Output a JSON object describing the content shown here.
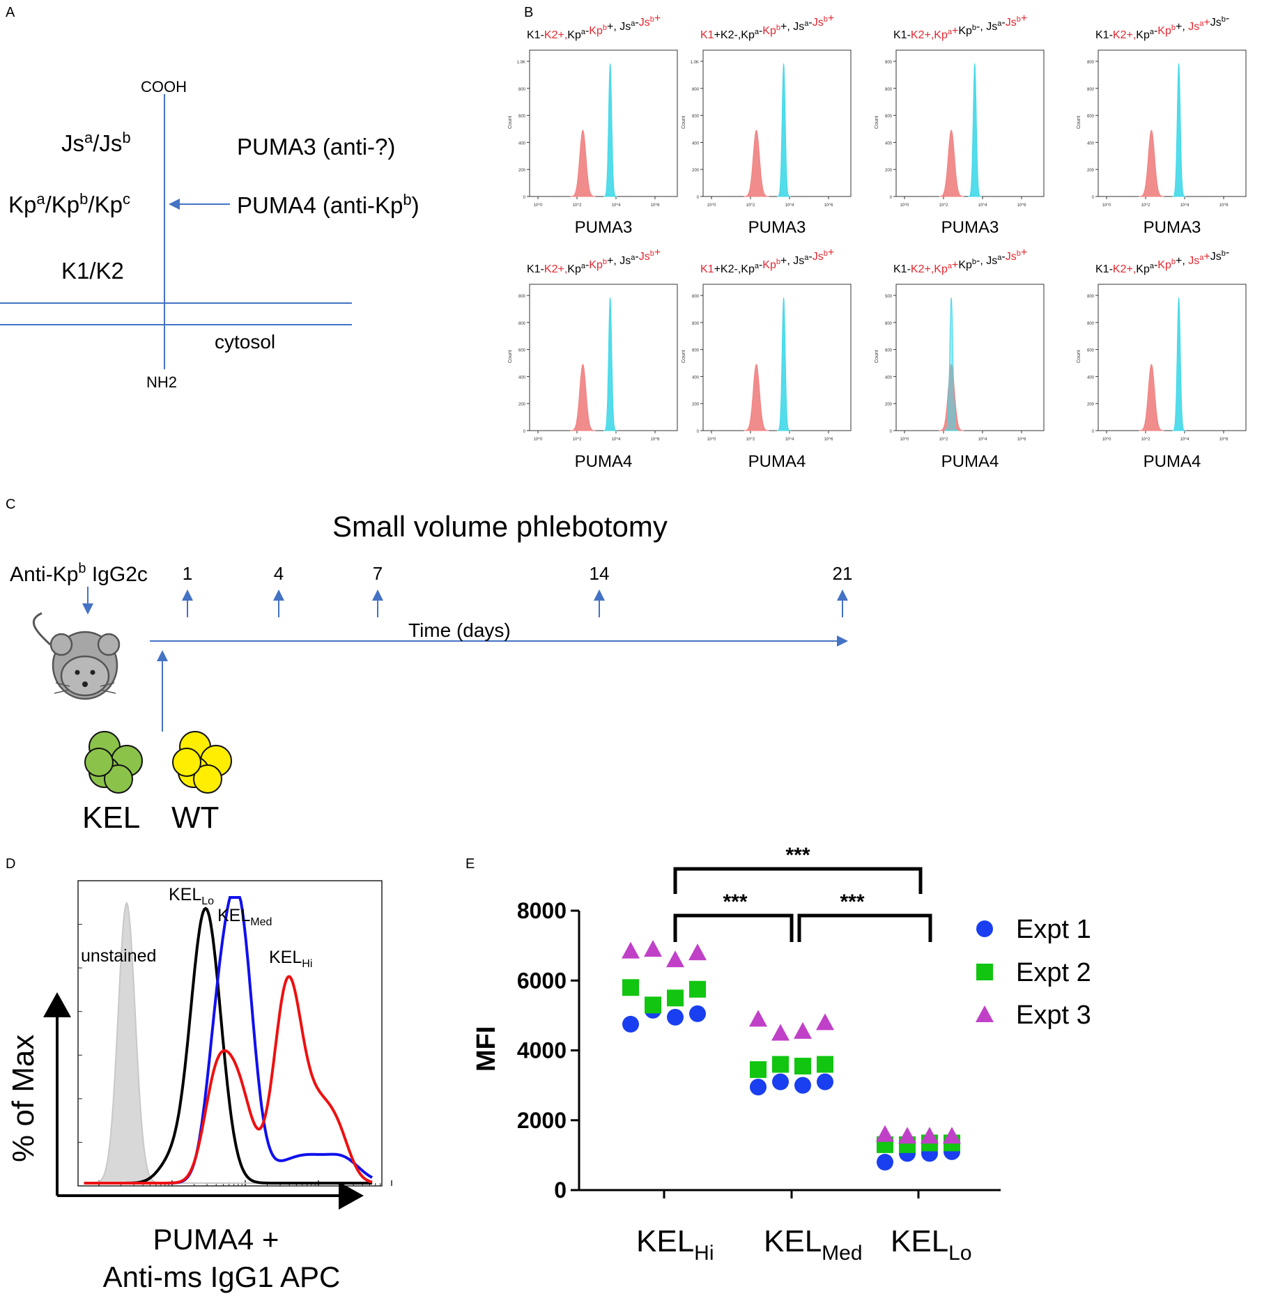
{
  "panel_labels": [
    "A",
    "B",
    "C",
    "D",
    "E"
  ],
  "colors": {
    "accent": "#4472c4",
    "red_text": "#e3262f",
    "hist_red": "#f08080",
    "hist_cyan": "#40d8e8",
    "kel_green": "#8bc34a",
    "wt_yellow": "#ffee00"
  },
  "panelA": {
    "top": "COOH",
    "bottom": "NH2",
    "cytosol": "cytosol",
    "left_labels": [
      {
        "id": "js",
        "base1": "Js",
        "sup1": "a",
        "sep": "/Js",
        "sup2": "b"
      },
      {
        "id": "kp",
        "text": "Kpa/Kpb/Kpc"
      },
      {
        "id": "k",
        "text": "K1/K2"
      }
    ],
    "js_base1": "Js",
    "js_sup1": "a",
    "js_sep": "/Js",
    "js_sup2": "b",
    "kp_base1": "Kp",
    "kp_sup1": "a",
    "kp_sep1": "/Kp",
    "kp_sup2": "b",
    "kp_sep2": "/Kp",
    "kp_sup3": "c",
    "k_label": "K1/K2",
    "puma3_label": "PUMA3 (anti-?)",
    "puma4_base": "PUMA4 (anti-Kp",
    "puma4_sup": "b",
    "puma4_close": ")"
  },
  "panelB": {
    "y_axis_label": "Count",
    "x_tick_labels": [
      "10^0",
      "10^2",
      "10^4",
      "10^6"
    ],
    "rows": [
      {
        "antibody": "PUMA3",
        "panels": [
          {
            "phenotype": "K1-K2+,Kpa-Kpb+, Jsa-Jsb+",
            "red_peak_log": 2.3,
            "cyan_peak_log": 3.7,
            "max_label": "1.0K"
          },
          {
            "phenotype": "K1+K2-,Kpa-Kpb+, Jsa-Jsb+",
            "red_peak_log": 2.3,
            "cyan_peak_log": 3.7,
            "max_label": "1.0K"
          },
          {
            "phenotype": "K1-K2+,Kpa+Kpb-, Jsa-Jsb+",
            "red_peak_log": 2.4,
            "cyan_peak_log": 3.6,
            "max_label": "800"
          },
          {
            "phenotype": "K1-K2+,Kpa-Kpb+, Jsa+Jsb-",
            "red_peak_log": 2.3,
            "cyan_peak_log": 3.7,
            "max_label": "800"
          }
        ]
      },
      {
        "antibody": "PUMA4",
        "panels": [
          {
            "phenotype": "K1-K2+,Kpa-Kpb+, Jsa-Jsb+",
            "red_peak_log": 2.3,
            "cyan_peak_log": 3.7,
            "max_label": "800"
          },
          {
            "phenotype": "K1+K2-,Kpa-Kpb+, Jsa-Jsb+",
            "red_peak_log": 2.3,
            "cyan_peak_log": 3.7,
            "max_label": "800"
          },
          {
            "phenotype": "K1-K2+,Kpa+Kpb-, Jsa-Jsb+",
            "red_peak_log": 2.4,
            "cyan_peak_log": 2.4,
            "max_label": "500"
          },
          {
            "phenotype": "K1-K2+,Kpa-Kpb+, Jsa+Jsb-",
            "red_peak_log": 2.3,
            "cyan_peak_log": 3.7,
            "max_label": "800"
          }
        ]
      }
    ],
    "titles": {
      "t1": [
        [
          "K1-",
          0
        ],
        [
          "K2+,",
          1
        ],
        [
          "Kp",
          0
        ],
        [
          "a",
          0,
          1
        ],
        [
          "-",
          0
        ],
        [
          "Kp",
          1
        ],
        [
          "b",
          1,
          1
        ],
        [
          "+,  Js",
          0
        ],
        [
          "a",
          0,
          1
        ],
        [
          "-",
          0
        ],
        [
          "Js",
          1
        ],
        [
          "b",
          1,
          1
        ],
        [
          "+",
          1
        ]
      ],
      "t2": [
        [
          "K1",
          1
        ],
        [
          "+K2-,",
          0
        ],
        [
          "Kp",
          0
        ],
        [
          "a",
          0,
          1
        ],
        [
          "-",
          0
        ],
        [
          "Kp",
          1
        ],
        [
          "b",
          1,
          1
        ],
        [
          "+,  Js",
          0
        ],
        [
          "a",
          0,
          1
        ],
        [
          "-",
          0
        ],
        [
          "Js",
          1
        ],
        [
          "b",
          1,
          1
        ],
        [
          "+",
          1
        ]
      ],
      "t3": [
        [
          "K1-",
          0
        ],
        [
          "K2+,",
          1
        ],
        [
          "Kp",
          1
        ],
        [
          "a",
          1,
          1
        ],
        [
          "+",
          1
        ],
        [
          "Kp",
          0
        ],
        [
          "b",
          0,
          1
        ],
        [
          "-,  Js",
          0
        ],
        [
          "a",
          0,
          1
        ],
        [
          "-",
          0
        ],
        [
          "Js",
          1
        ],
        [
          "b",
          1,
          1
        ],
        [
          "+",
          1
        ]
      ],
      "t4": [
        [
          "K1-",
          0
        ],
        [
          "K2+,",
          1
        ],
        [
          "Kp",
          0
        ],
        [
          "a",
          0,
          1
        ],
        [
          "-",
          0
        ],
        [
          "Kp",
          1
        ],
        [
          "b",
          1,
          1
        ],
        [
          "+,  ",
          0
        ],
        [
          "Js",
          1
        ],
        [
          "a",
          1,
          1
        ],
        [
          "+",
          1
        ],
        [
          "Js",
          0
        ],
        [
          "b",
          0,
          1
        ],
        [
          "-",
          0
        ]
      ]
    }
  },
  "panelC": {
    "title": "Small volume phlebotomy",
    "injection_base": "Anti-Kp",
    "injection_sup": "b",
    "injection_rest": " IgG2c",
    "axis_label": "Time (days)",
    "timepoints": [
      "1",
      "4",
      "7",
      "14",
      "21"
    ],
    "cells": [
      {
        "label": "KEL",
        "color": "#8bc34a"
      },
      {
        "label": "WT",
        "color": "#ffee00"
      }
    ],
    "kel_label": "KEL",
    "wt_label": "WT"
  },
  "panelD": {
    "y_label": "% of Max",
    "x_label_line1": "PUMA4 +",
    "x_label_line2": "Anti-ms IgG1 APC",
    "series": [
      {
        "name": "unstained",
        "color": "#c8c8c8",
        "peak_position": 0.18
      },
      {
        "name": "KEL_Lo",
        "color": "#000000",
        "peak_position": 0.42
      },
      {
        "name": "KEL_Med",
        "color": "#1010ee",
        "peak_position": 0.53
      },
      {
        "name": "KEL_Hi",
        "color": "#ee1010",
        "peak_position": 0.69
      }
    ],
    "unstained_label": "unstained",
    "lo_base": "KEL",
    "lo_sub": "Lo",
    "med_base": "KEL",
    "med_sub": "Med",
    "hi_base": "KEL",
    "hi_sub": "Hi"
  },
  "chart_data": {
    "type": "scatter",
    "ylabel": "MFI",
    "ylim": [
      0,
      8000
    ],
    "yticks": [
      "0",
      "2000",
      "4000",
      "6000",
      "8000"
    ],
    "categories": [
      "KELHi",
      "KELMed",
      "KELLo"
    ],
    "cat_base": "KEL",
    "cat_subs": [
      "Hi",
      "Med",
      "Lo"
    ],
    "series": [
      {
        "name": "Expt 1",
        "marker": "circle",
        "color": "#1a3ff0",
        "values": [
          [
            4750,
            5150,
            4950,
            5050
          ],
          [
            2950,
            3100,
            3000,
            3100
          ],
          [
            800,
            1050,
            1050,
            1100
          ]
        ]
      },
      {
        "name": "Expt 2",
        "marker": "square",
        "color": "#11c511",
        "values": [
          [
            5800,
            5300,
            5500,
            5750
          ],
          [
            3450,
            3600,
            3550,
            3600
          ],
          [
            1300,
            1300,
            1350,
            1350
          ]
        ]
      },
      {
        "name": "Expt 3",
        "marker": "triangle",
        "color": "#c040c8",
        "values": [
          [
            6850,
            6900,
            6600,
            6800
          ],
          [
            4900,
            4500,
            4550,
            4800
          ],
          [
            1600,
            1550,
            1550,
            1550
          ]
        ]
      }
    ],
    "significance": [
      {
        "from": "KELHi",
        "to": "KELMed",
        "label": "***"
      },
      {
        "from": "KELMed",
        "to": "KELLo",
        "label": "***"
      },
      {
        "from": "KELHi",
        "to": "KELLo",
        "label": "***"
      }
    ],
    "legend": [
      "Expt 1",
      "Expt 2",
      "Expt 3"
    ],
    "legend_position": "right"
  }
}
